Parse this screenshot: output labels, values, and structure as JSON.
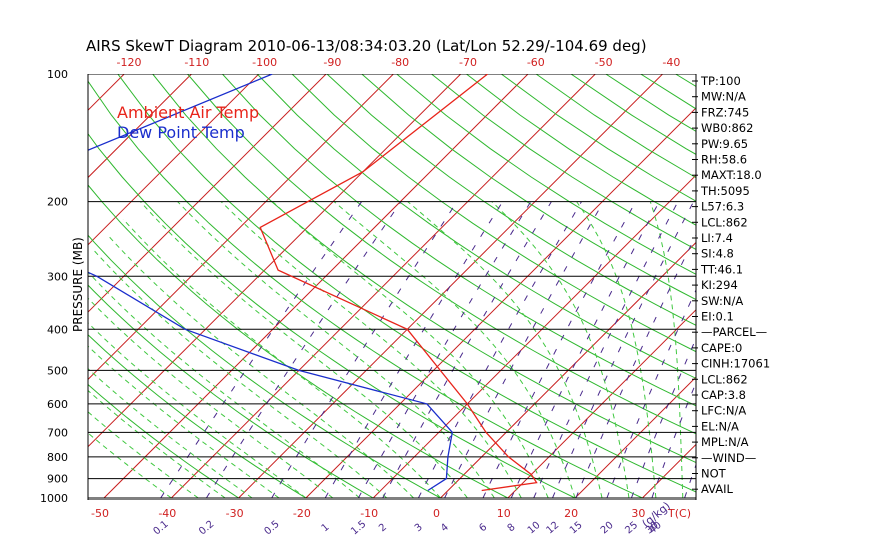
{
  "chart_data": {
    "type": "line",
    "title": "AIRS SkewT Diagram 2010-06-13/08:34:03.20 (Lat/Lon 52.29/-104.69 deg)",
    "ylabel": "PRESSURE (MB)",
    "xunit_label": "T(C)",
    "mixing_unit_label": "(g/kg)",
    "y_scale": "log",
    "ylim": [
      1000,
      100
    ],
    "xlim_bottom": [
      -50,
      40
    ],
    "pressure_ticks": [
      {
        "p": 100,
        "label": "100"
      },
      {
        "p": 200,
        "label": "200"
      },
      {
        "p": 300,
        "label": "300"
      },
      {
        "p": 400,
        "label": "400"
      },
      {
        "p": 500,
        "label": "500"
      },
      {
        "p": 600,
        "label": "600"
      },
      {
        "p": 700,
        "label": "700"
      },
      {
        "p": 800,
        "label": "800"
      },
      {
        "p": 900,
        "label": "900"
      },
      {
        "p": 1000,
        "label": "1000"
      }
    ],
    "bottom_temp_ticks": [
      "-50",
      "-40",
      "-30",
      "-20",
      "-10",
      "0",
      "10",
      "20",
      "30"
    ],
    "top_temp_ticks": [
      "-120",
      "-110",
      "-100",
      "-90",
      "-80",
      "-70",
      "-60",
      "-50",
      "-40"
    ],
    "mixing_ratio_labels": [
      "0.1",
      "0.2",
      "0.5",
      "1",
      "1.5",
      "2",
      "3",
      "4",
      "6",
      "8",
      "10",
      "12",
      "15",
      "20",
      "25",
      "30",
      "40"
    ],
    "legend": [
      {
        "label": "Ambient Air Temp",
        "color": "#e8241a"
      },
      {
        "label": "Dew Point Temp",
        "color": "#1a2ecc"
      }
    ],
    "series": [
      {
        "name": "Ambient Air Temp",
        "color": "#e8241a",
        "points": [
          [
            100,
            -56
          ],
          [
            170,
            -60
          ],
          [
            230,
            -67
          ],
          [
            290,
            -58
          ],
          [
            400,
            -30
          ],
          [
            500,
            -19
          ],
          [
            600,
            -10
          ],
          [
            700,
            -3
          ],
          [
            800,
            4
          ],
          [
            880,
            10
          ],
          [
            920,
            12
          ],
          [
            960,
            5
          ]
        ]
      },
      {
        "name": "Dew Point Temp",
        "color": "#1a2ecc",
        "points": [
          [
            100,
            -88
          ],
          [
            155,
            -105
          ],
          [
            200,
            -104
          ],
          [
            245,
            -102
          ],
          [
            300,
            -84
          ],
          [
            400,
            -63
          ],
          [
            500,
            -40
          ],
          [
            600,
            -16
          ],
          [
            700,
            -8
          ],
          [
            800,
            -5
          ],
          [
            900,
            -2
          ],
          [
            960,
            -3
          ]
        ]
      }
    ],
    "indices": [
      "TP:100",
      "MW:N/A",
      "FRZ:745",
      "WB0:862",
      "PW:9.65",
      "RH:58.6",
      "MAXT:18.0",
      "TH:5095",
      "L57:6.3",
      "LCL:862",
      "LI:7.4",
      "SI:4.8",
      "TT:46.1",
      "KI:294",
      "SW:N/A",
      "EI:0.1",
      "—PARCEL—",
      "CAPE:0",
      "CINH:17061",
      "LCL:862",
      "CAP:3.8",
      "LFC:N/A",
      "EL:N/A",
      "MPL:N/A",
      "—WIND—",
      "NOT",
      "AVAIL"
    ],
    "colors": {
      "temperature": "#e8241a",
      "dewpoint": "#1a2ecc",
      "isotherm": "#c81e1e",
      "dry_adiabat": "#2fb82f",
      "moist_adiabat": "#40c840",
      "mixing_ratio": "#4a2a8c",
      "isobar": "#000000",
      "tick_red": "#d02020"
    }
  }
}
